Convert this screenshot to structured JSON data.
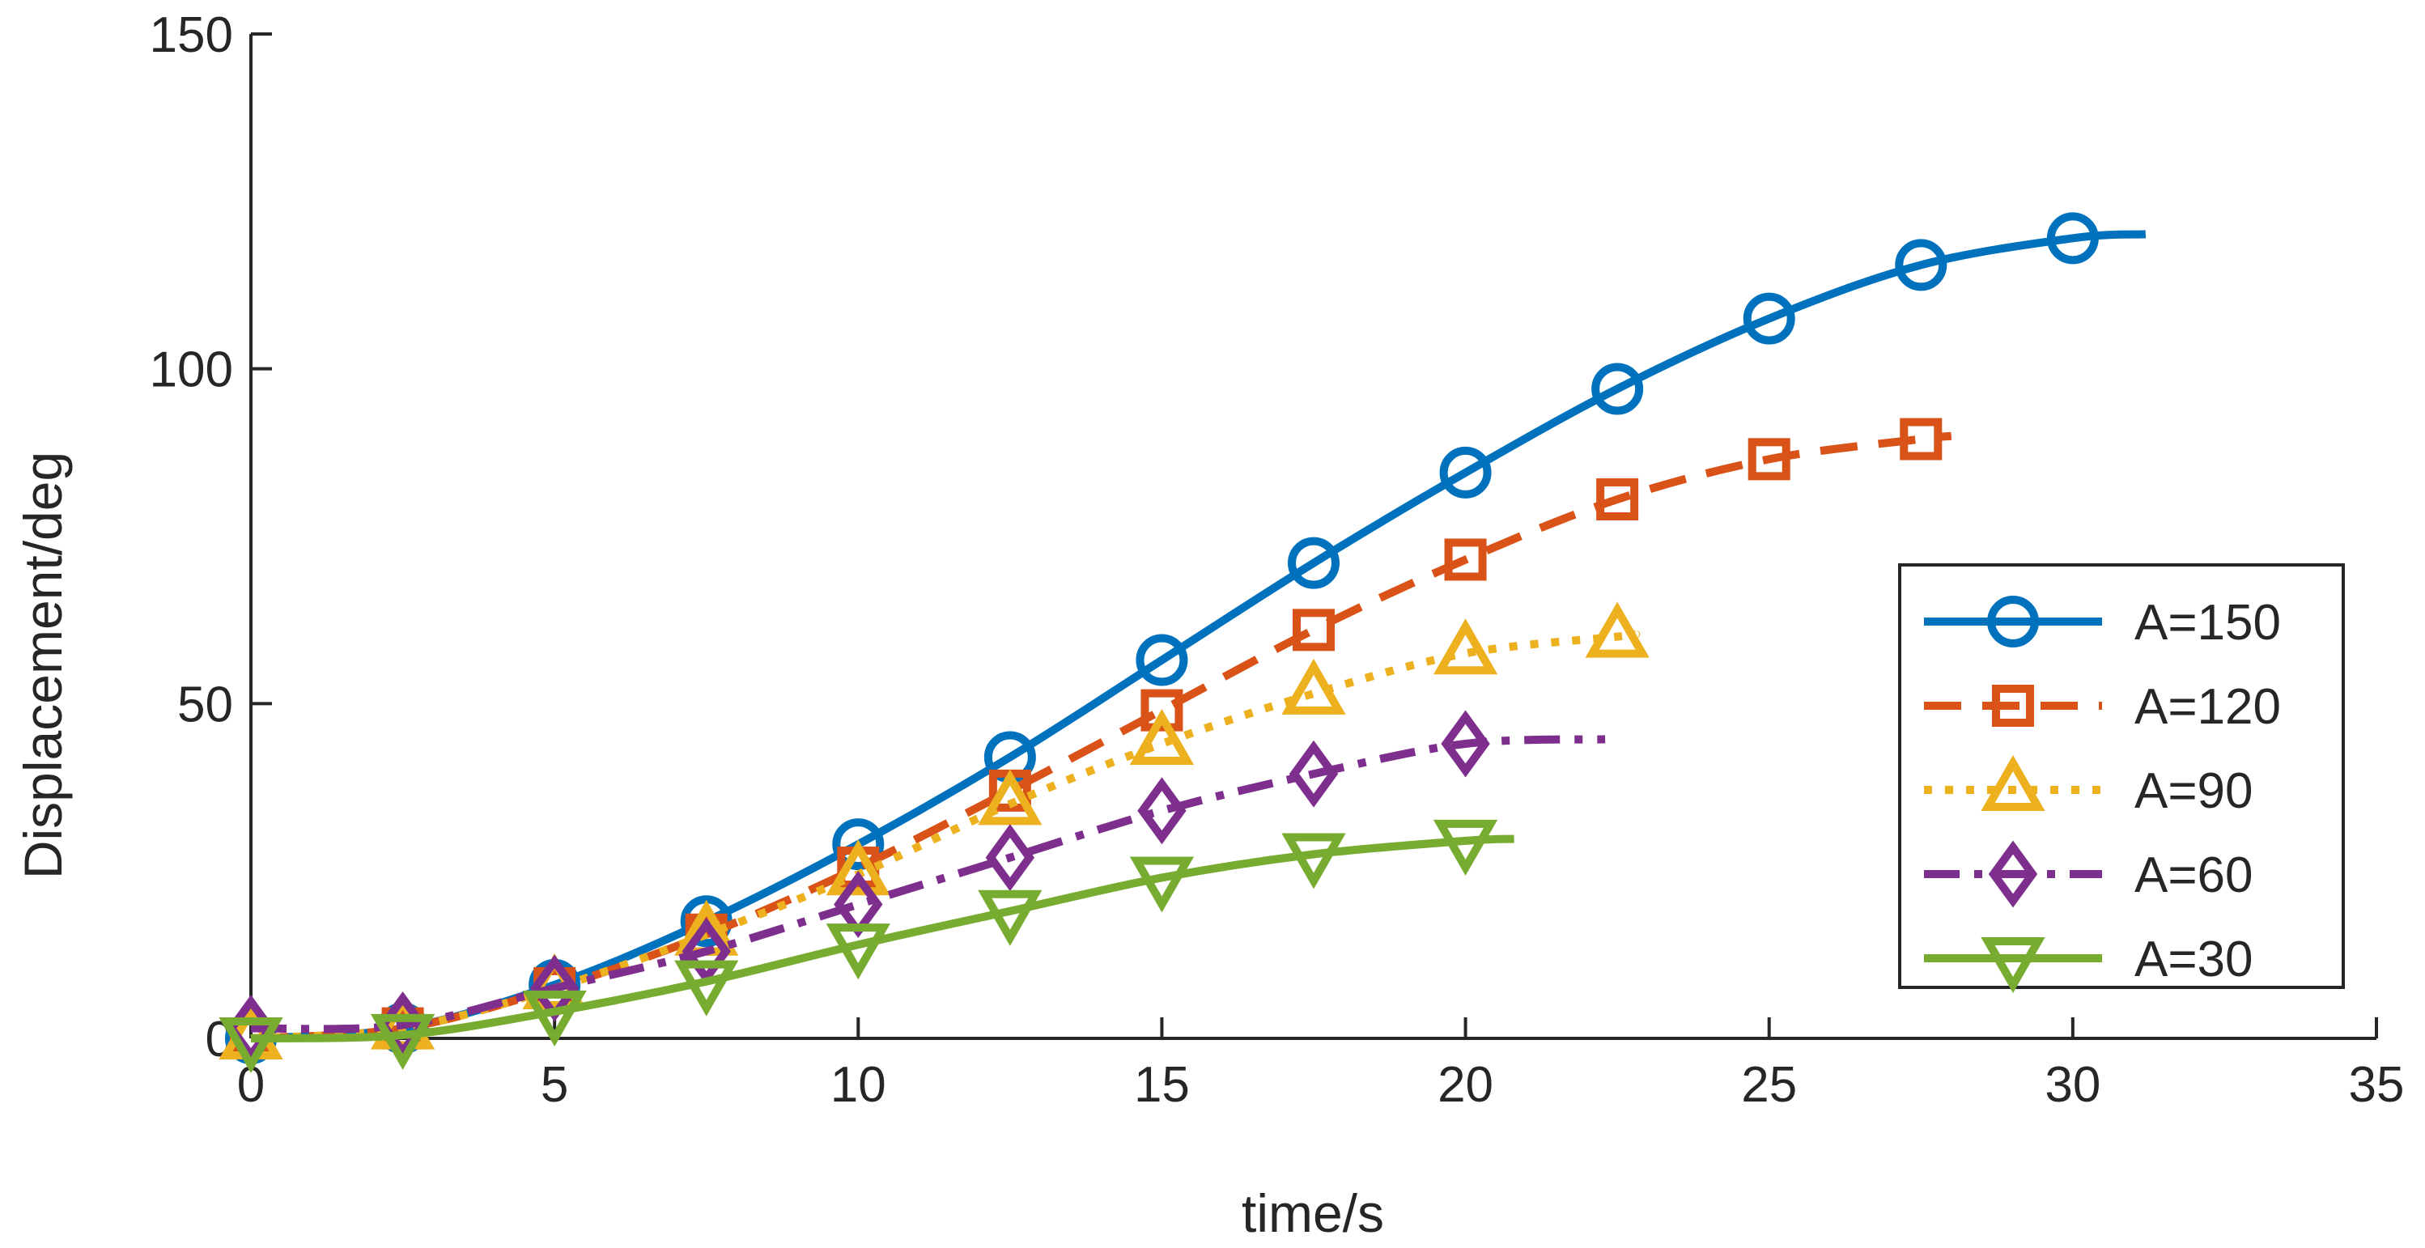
{
  "chart_data": {
    "type": "line",
    "title": "",
    "xlabel": "time/s",
    "ylabel": "Displacement/deg",
    "xlim": [
      0,
      35
    ],
    "ylim": [
      0,
      150
    ],
    "xticks": [
      0,
      5,
      10,
      15,
      20,
      25,
      30,
      35
    ],
    "yticks": [
      0,
      50,
      100,
      150
    ],
    "grid": false,
    "legend_position": "right",
    "series": [
      {
        "name": "A=150",
        "color": "#0072BD",
        "dash": "solid",
        "marker": "circle",
        "x_end": 31.2,
        "marker_x": [
          0,
          2.5,
          5,
          7.5,
          10,
          12.5,
          15,
          17.5,
          20,
          22.5,
          25,
          27.5,
          30
        ],
        "marker_y": [
          0,
          1.5,
          8,
          17.5,
          29,
          42,
          56.5,
          71,
          84.5,
          97,
          107.5,
          115.5,
          119.5
        ]
      },
      {
        "name": "A=120",
        "color": "#D95319",
        "dash": "dashed",
        "marker": "square",
        "x_end": 28.0,
        "marker_x": [
          0,
          2.5,
          5,
          7.5,
          10,
          12.5,
          15,
          17.5,
          20,
          22.5,
          25,
          27.5
        ],
        "marker_y": [
          0,
          1.5,
          7.5,
          15.5,
          25.5,
          37,
          49,
          61,
          71.5,
          80.5,
          86.5,
          89.5
        ]
      },
      {
        "name": "A=90",
        "color": "#EDB120",
        "dash": "dotted",
        "marker": "triangle-up",
        "x_end": 22.8,
        "marker_x": [
          0,
          2.5,
          5,
          7.5,
          10,
          12.5,
          15,
          17.5,
          20,
          22.5
        ],
        "marker_y": [
          0,
          1.5,
          7.5,
          15.5,
          24.5,
          35,
          44,
          51.5,
          57.5,
          60
        ]
      },
      {
        "name": "A=60",
        "color": "#7E2F8E",
        "dash": "dashdot",
        "marker": "diamond",
        "x_end": 22.3,
        "marker_x": [
          0,
          2.5,
          5,
          7.5,
          10,
          12.5,
          15,
          17.5,
          20
        ],
        "marker_y": [
          1.5,
          2,
          7.5,
          13,
          20,
          27,
          34,
          39.5,
          44
        ]
      },
      {
        "name": "A=30",
        "color": "#77AC30",
        "dash": "solid",
        "marker": "triangle-down",
        "x_end": 20.8,
        "marker_x": [
          0,
          2.5,
          5,
          7.5,
          10,
          12.5,
          15,
          17.5,
          20
        ],
        "marker_y": [
          0,
          0.5,
          4,
          8.5,
          14,
          19,
          24,
          27.5,
          29.5
        ]
      }
    ]
  }
}
